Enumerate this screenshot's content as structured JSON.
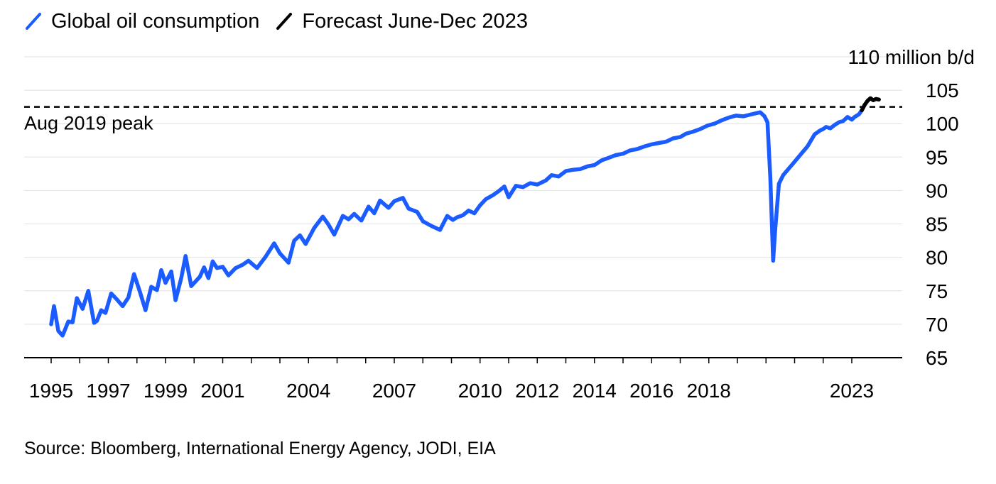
{
  "legend": [
    {
      "label": "Global oil consumption",
      "color": "#1a5cff",
      "icon": "slash-line-icon"
    },
    {
      "label": "Forecast June-Dec 2023",
      "color": "#000000",
      "icon": "slash-line-icon"
    }
  ],
  "source": "Source: Bloomberg, International Energy Agency, JODI, EIA",
  "chart_data": {
    "type": "line",
    "title": "",
    "xlabel": "",
    "ylabel": "",
    "y_unit_label": "110 million b/d",
    "ylim": [
      65,
      110
    ],
    "xlim": [
      1995,
      2025.2
    ],
    "yticks": [
      65,
      70,
      75,
      80,
      85,
      90,
      95,
      100,
      105
    ],
    "ytick_labels": [
      "65",
      "70",
      "75",
      "80",
      "85",
      "90",
      "95",
      "100",
      "105"
    ],
    "xticks": [
      1995,
      1997,
      1999,
      2001,
      2004,
      2007,
      2010,
      2012,
      2014,
      2016,
      2018,
      2023
    ],
    "xtick_labels": [
      "1995",
      "1997",
      "1999",
      "2001",
      "2004",
      "2007",
      "2010",
      "2012",
      "2014",
      "2016",
      "2018",
      "2023"
    ],
    "grid": "horizontal",
    "annotations": [
      {
        "text": "Aug 2019 peak",
        "type": "reference-line",
        "y": 102.5,
        "style": "dashed",
        "color": "#000000"
      }
    ],
    "series": [
      {
        "name": "Global oil consumption",
        "color": "#1a5cff",
        "x": [
          1995.0,
          1995.1,
          1995.25,
          1995.4,
          1995.6,
          1995.75,
          1995.9,
          1996.1,
          1996.3,
          1996.5,
          1996.6,
          1996.75,
          1996.9,
          1997.1,
          1997.3,
          1997.5,
          1997.7,
          1997.9,
          1998.1,
          1998.3,
          1998.5,
          1998.7,
          1998.85,
          1999.0,
          1999.2,
          1999.35,
          1999.55,
          1999.7,
          1999.9,
          2000.2,
          2000.35,
          2000.5,
          2000.65,
          2000.8,
          2001.0,
          2001.2,
          2001.45,
          2001.7,
          2001.9,
          2002.2,
          2002.5,
          2002.8,
          2003.0,
          2003.3,
          2003.5,
          2003.7,
          2003.9,
          2004.2,
          2004.5,
          2004.7,
          2004.9,
          2005.2,
          2005.4,
          2005.6,
          2005.85,
          2006.1,
          2006.3,
          2006.5,
          2006.8,
          2007.0,
          2007.3,
          2007.5,
          2007.8,
          2008.0,
          2008.3,
          2008.6,
          2008.85,
          2009.05,
          2009.2,
          2009.4,
          2009.6,
          2009.8,
          2010.0,
          2010.2,
          2010.45,
          2010.65,
          2010.85,
          2011.0,
          2011.25,
          2011.5,
          2011.75,
          2012.0,
          2012.3,
          2012.5,
          2012.75,
          2013.0,
          2013.25,
          2013.5,
          2013.75,
          2014.0,
          2014.25,
          2014.5,
          2014.75,
          2015.0,
          2015.25,
          2015.5,
          2015.75,
          2016.0,
          2016.25,
          2016.5,
          2016.75,
          2017.0,
          2017.2,
          2017.45,
          2017.7,
          2017.95,
          2018.2,
          2018.45,
          2018.7,
          2018.95,
          2019.2,
          2019.4,
          2019.6,
          2019.8,
          2019.95,
          2020.05,
          2020.15,
          2020.25,
          2020.32,
          2020.45,
          2020.6,
          2020.8,
          2021.0,
          2021.25,
          2021.45,
          2021.7,
          2021.9,
          2022.0,
          2022.1,
          2022.25,
          2022.4,
          2022.55,
          2022.7,
          2022.85,
          2023.0,
          2023.1,
          2023.25,
          2023.35
        ],
        "y": [
          70.0,
          72.7,
          69.0,
          68.3,
          70.4,
          70.3,
          73.9,
          72.3,
          75.0,
          70.2,
          70.5,
          72.1,
          71.7,
          74.6,
          73.7,
          72.7,
          74.0,
          77.5,
          74.9,
          72.1,
          75.6,
          75.1,
          78.1,
          76.2,
          77.9,
          73.6,
          76.9,
          80.2,
          75.7,
          77.1,
          78.5,
          76.9,
          79.4,
          78.4,
          78.6,
          77.3,
          78.4,
          78.9,
          79.5,
          78.4,
          80.1,
          82.1,
          80.6,
          79.2,
          82.5,
          83.3,
          82.0,
          84.4,
          86.1,
          84.9,
          83.4,
          86.2,
          85.7,
          86.5,
          85.5,
          87.6,
          86.6,
          88.5,
          87.4,
          88.4,
          88.9,
          87.3,
          86.8,
          85.4,
          84.7,
          84.1,
          86.2,
          85.6,
          86.0,
          86.3,
          87.0,
          86.6,
          87.8,
          88.7,
          89.3,
          89.9,
          90.6,
          89.0,
          90.7,
          90.5,
          91.1,
          90.9,
          91.5,
          92.3,
          92.1,
          92.9,
          93.1,
          93.2,
          93.6,
          93.8,
          94.5,
          94.9,
          95.3,
          95.5,
          96.0,
          96.2,
          96.6,
          96.9,
          97.1,
          97.3,
          97.8,
          98.0,
          98.5,
          98.8,
          99.2,
          99.7,
          100.0,
          100.5,
          100.9,
          101.2,
          101.1,
          101.3,
          101.5,
          101.7,
          101.1,
          100.2,
          92.0,
          79.5,
          84.0,
          91.0,
          92.3,
          93.3,
          94.3,
          95.6,
          96.6,
          98.4,
          99.0,
          99.2,
          99.5,
          99.3,
          99.8,
          100.2,
          100.4,
          101.0,
          100.6,
          101.0,
          101.4,
          102.0
        ]
      },
      {
        "name": "Forecast June-Dec 2023",
        "color": "#000000",
        "x": [
          2023.35,
          2023.45,
          2023.55,
          2023.65,
          2023.75,
          2023.85,
          2023.95
        ],
        "y": [
          102.0,
          102.8,
          103.4,
          103.8,
          103.5,
          103.7,
          103.6
        ]
      }
    ]
  }
}
